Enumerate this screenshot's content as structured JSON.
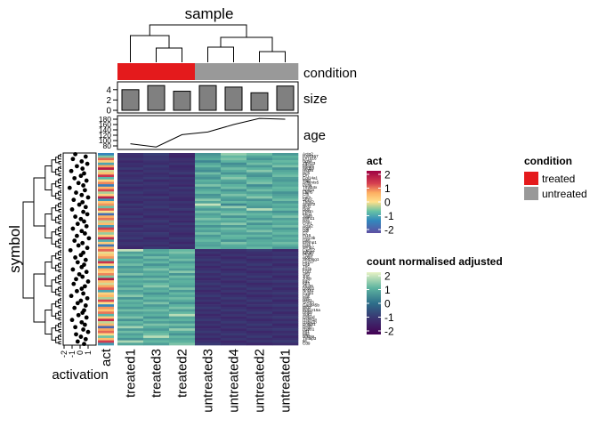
{
  "chart_data": {
    "type": "heatmap",
    "title": "sample",
    "row_axis_label": "symbol",
    "samples": [
      "treated1",
      "treated3",
      "treated2",
      "untreated3",
      "untreated4",
      "untreated2",
      "untreated1"
    ],
    "tracks": {
      "condition": {
        "label": "condition",
        "values": [
          "treated",
          "treated",
          "treated",
          "untreated",
          "untreated",
          "untreated",
          "untreated"
        ]
      },
      "size": {
        "label": "size",
        "type": "bar",
        "values": [
          4.0,
          4.8,
          3.7,
          4.8,
          4.5,
          3.4,
          4.7
        ],
        "ylim": [
          0,
          5
        ],
        "ticks": [
          "0",
          "2",
          "4"
        ]
      },
      "age": {
        "label": "age",
        "type": "line",
        "values": [
          88,
          76,
          122,
          132,
          160,
          183,
          180
        ],
        "ylim": [
          70,
          190
        ],
        "ticks": [
          "80",
          "100",
          "120",
          "140",
          "160",
          "180"
        ]
      }
    },
    "left_annotations": {
      "act_label": "act",
      "activation_label": "activation",
      "activation_ticks": [
        "-2",
        "-1",
        "0",
        "1"
      ]
    },
    "row_labels": [
      "Actg2",
      "Gm7467",
      "Fn1d16",
      "Rgs4",
      "Zfp423",
      "Mfap5",
      "Mrgp8",
      "Hlg36",
      "Dcn",
      "Eln",
      "Col14a1",
      "Mgp",
      "Adamts5",
      "Penk",
      "Tmsb4x",
      "Aebp1",
      "Fbln5",
      "Cfh",
      "Lum",
      "Sfrp2",
      "Thbs2",
      "Smoc2",
      "Nid2",
      "Bgn",
      "Postn",
      "Fbn1",
      "Tagln",
      "Myh11",
      "Des",
      "Cnn1",
      "Acta2",
      "Ogn",
      "Dpt",
      "C7",
      "Pi16",
      "Clec3b",
      "Gsn",
      "Efemp1",
      "Ctsk",
      "Mmp2",
      "Cxcl12",
      "Igfbp6",
      "Ptgds",
      "Apod",
      "Serping1",
      "Lrrc17",
      "Ckb",
      "Tnc",
      "Fosb",
      "Egr1",
      "Atf3",
      "Jun",
      "Junb",
      "Ier2",
      "Klf4",
      "Zfp36",
      "Dusp1",
      "Nr4a1",
      "Cyr61",
      "Ctgf",
      "Myc",
      "Hes1",
      "Socs3",
      "Gadd45b",
      "Btg2",
      "Ppp1r15a",
      "Rhob",
      "Sgk1",
      "Cebpd",
      "Hspa1a",
      "Hspa1b",
      "Dnajb1",
      "Bag3",
      "Hspb1",
      "Mt1",
      "Mt2",
      "Nfkbia",
      "Tnfaip3",
      "Il6",
      "Cd9"
    ],
    "cell_values": [
      [
        -1.2,
        -0.9,
        -1.4,
        0.6,
        1.6,
        1.3,
        0.7
      ],
      [
        -1.3,
        -1.1,
        -1.5,
        0.8,
        1.2,
        0.9,
        1.1
      ],
      [
        -1.1,
        -1.0,
        -1.2,
        1.0,
        1.4,
        0.6,
        0.9
      ],
      [
        -1.4,
        -1.2,
        -1.3,
        0.4,
        1.1,
        1.0,
        1.2
      ],
      [
        -1.2,
        -1.3,
        -1.1,
        0.9,
        0.5,
        1.3,
        1.0
      ],
      [
        -1.3,
        -1.0,
        -1.4,
        1.2,
        0.8,
        0.7,
        1.4
      ],
      [
        -1.0,
        -1.2,
        -1.3,
        0.7,
        1.3,
        1.1,
        0.6
      ],
      [
        -1.4,
        -1.1,
        -1.2,
        0.5,
        1.0,
        1.5,
        0.9
      ],
      [
        -1.1,
        -1.3,
        -1.0,
        1.3,
        0.6,
        0.8,
        1.1
      ],
      [
        -1.3,
        -1.2,
        -1.4,
        0.8,
        1.2,
        0.6,
        1.3
      ],
      [
        -1.2,
        -1.0,
        -1.1,
        0.6,
        1.5,
        1.0,
        0.8
      ],
      [
        -1.0,
        -1.4,
        -1.3,
        1.1,
        0.9,
        1.2,
        0.7
      ],
      [
        -1.3,
        -1.1,
        -1.2,
        0.9,
        0.7,
        1.4,
        1.0
      ],
      [
        -1.1,
        -1.2,
        -1.4,
        1.4,
        1.1,
        0.5,
        0.9
      ],
      [
        -1.4,
        -1.3,
        -1.0,
        0.7,
        1.3,
        0.9,
        1.2
      ],
      [
        -1.2,
        -1.1,
        -1.3,
        1.0,
        0.6,
        1.3,
        1.1
      ],
      [
        -1.0,
        -1.2,
        -1.1,
        1.2,
        1.0,
        0.8,
        0.6
      ],
      [
        -1.3,
        -1.4,
        -1.2,
        0.6,
        1.4,
        1.1,
        0.8
      ],
      [
        -1.1,
        -1.0,
        -1.3,
        0.8,
        0.9,
        1.5,
        1.0
      ],
      [
        -1.2,
        -1.3,
        -1.4,
        1.5,
        0.7,
        0.6,
        1.3
      ],
      [
        -1.4,
        -1.1,
        -1.1,
        0.9,
        1.2,
        1.0,
        0.7
      ],
      [
        -1.0,
        -1.2,
        -1.3,
        2.0,
        0.4,
        0.9,
        1.1
      ],
      [
        -1.3,
        -1.0,
        -1.2,
        1.1,
        1.6,
        0.7,
        0.9
      ],
      [
        -1.1,
        -1.3,
        -1.0,
        0.7,
        0.8,
        1.9,
        1.2
      ],
      [
        -1.2,
        -1.2,
        -1.4,
        1.3,
        1.1,
        0.8,
        0.6
      ],
      [
        -1.4,
        -1.1,
        -1.1,
        0.8,
        1.4,
        1.2,
        1.0
      ],
      [
        -1.0,
        -1.4,
        -1.3,
        1.0,
        0.6,
        1.0,
        1.4
      ],
      [
        -1.3,
        -1.2,
        -1.2,
        1.4,
        1.2,
        0.7,
        0.8
      ],
      [
        -1.1,
        -1.0,
        -1.4,
        0.9,
        0.9,
        1.3,
        1.1
      ],
      [
        -1.2,
        -1.3,
        -1.0,
        1.2,
        1.5,
        0.6,
        0.9
      ],
      [
        -1.4,
        -1.1,
        -1.3,
        0.6,
        0.7,
        1.1,
        1.3
      ],
      [
        -1.0,
        -1.2,
        -1.1,
        1.1,
        1.3,
        0.9,
        0.7
      ],
      [
        -1.3,
        -1.3,
        -1.2,
        0.8,
        1.0,
        1.4,
        1.0
      ],
      [
        -1.1,
        -1.0,
        -1.4,
        1.3,
        0.8,
        0.8,
        1.2
      ],
      [
        -1.2,
        -1.1,
        -1.3,
        0.7,
        1.2,
        1.2,
        0.8
      ],
      [
        -1.0,
        -1.4,
        -1.0,
        1.0,
        1.1,
        0.7,
        1.1
      ],
      [
        -1.3,
        -1.2,
        -1.2,
        1.2,
        0.6,
        1.0,
        0.9
      ],
      [
        -1.1,
        -1.1,
        -1.4,
        0.9,
        1.4,
        1.1,
        1.3
      ],
      [
        -1.2,
        -1.3,
        -1.1,
        0.8,
        1.0,
        0.9,
        1.0
      ],
      [
        -1.4,
        -1.0,
        -1.3,
        1.1,
        0.9,
        1.2,
        0.7
      ],
      [
        2.0,
        0.9,
        1.2,
        -1.3,
        -1.2,
        -1.0,
        -1.4
      ],
      [
        0.8,
        1.1,
        1.4,
        -1.1,
        -1.3,
        -1.2,
        -1.1
      ],
      [
        1.2,
        0.7,
        1.0,
        -1.4,
        -1.1,
        -1.3,
        -1.2
      ],
      [
        0.6,
        1.3,
        0.9,
        -1.2,
        -1.4,
        -1.1,
        -1.0
      ],
      [
        1.1,
        0.8,
        1.3,
        -1.0,
        -1.2,
        -1.4,
        -1.3
      ],
      [
        0.9,
        1.2,
        0.7,
        -1.3,
        -1.0,
        -1.2,
        -1.1
      ],
      [
        1.3,
        0.6,
        1.1,
        -1.1,
        -1.3,
        -1.0,
        -1.4
      ],
      [
        0.7,
        1.0,
        1.2,
        -1.4,
        -1.1,
        -1.3,
        -1.2
      ],
      [
        1.0,
        1.4,
        0.8,
        -1.2,
        -1.4,
        -1.1,
        -1.0
      ],
      [
        0.8,
        0.9,
        1.5,
        -1.0,
        -1.2,
        -1.4,
        -1.3
      ],
      [
        1.4,
        1.1,
        0.6,
        -1.3,
        -1.0,
        -1.2,
        -1.1
      ],
      [
        0.6,
        0.7,
        1.3,
        -1.1,
        -1.3,
        -1.0,
        -1.4
      ],
      [
        1.2,
        1.3,
        0.9,
        -1.4,
        -1.1,
        -1.3,
        -1.2
      ],
      [
        0.9,
        0.8,
        1.1,
        -1.2,
        -1.4,
        -1.1,
        -1.0
      ],
      [
        1.1,
        1.2,
        1.0,
        -1.0,
        -1.2,
        -1.4,
        -1.3
      ],
      [
        0.7,
        1.5,
        0.8,
        -1.3,
        -1.0,
        -1.2,
        -1.1
      ],
      [
        1.3,
        0.9,
        1.4,
        -1.1,
        -1.3,
        -1.0,
        -1.4
      ],
      [
        0.8,
        1.1,
        0.7,
        -1.4,
        -1.1,
        -1.3,
        -1.2
      ],
      [
        1.0,
        0.6,
        1.2,
        -1.2,
        -1.4,
        -1.1,
        -1.0
      ],
      [
        1.5,
        1.0,
        0.9,
        -1.0,
        -1.2,
        -1.4,
        -1.3
      ],
      [
        0.6,
        1.2,
        1.3,
        -1.3,
        -1.0,
        -1.2,
        -1.1
      ],
      [
        1.2,
        0.8,
        1.0,
        -1.1,
        -1.3,
        -1.0,
        -1.4
      ],
      [
        0.9,
        1.4,
        0.6,
        -1.4,
        -1.1,
        -1.3,
        -1.2
      ],
      [
        1.1,
        0.7,
        1.1,
        -1.2,
        -1.4,
        -1.1,
        -1.0
      ],
      [
        0.7,
        1.0,
        1.4,
        -1.0,
        -1.2,
        -1.4,
        -1.3
      ],
      [
        1.3,
        1.3,
        0.8,
        -1.3,
        -1.0,
        -1.2,
        -1.1
      ],
      [
        0.8,
        0.9,
        1.2,
        -1.1,
        -1.3,
        -1.0,
        -1.4
      ],
      [
        1.0,
        1.1,
        1.9,
        -1.4,
        -1.1,
        -1.3,
        -1.2
      ],
      [
        1.4,
        0.6,
        0.9,
        -1.2,
        -1.4,
        -1.1,
        -1.0
      ],
      [
        0.6,
        1.2,
        1.1,
        -1.0,
        -1.2,
        -1.4,
        -1.3
      ],
      [
        1.2,
        0.8,
        0.7,
        -1.3,
        -1.0,
        -1.2,
        -1.1
      ],
      [
        0.9,
        1.4,
        1.3,
        -1.1,
        -1.3,
        -1.0,
        -1.4
      ],
      [
        1.7,
        1.0,
        0.8,
        -1.4,
        -1.1,
        -1.3,
        -1.2
      ],
      [
        0.7,
        0.7,
        1.6,
        -1.2,
        -1.4,
        -1.1,
        -1.0
      ],
      [
        1.3,
        1.1,
        1.0,
        -1.0,
        -1.2,
        -1.4,
        -1.3
      ],
      [
        0.8,
        1.3,
        0.6,
        -1.3,
        -1.0,
        -1.2,
        -1.1
      ],
      [
        1.1,
        1.9,
        1.2,
        -1.1,
        -1.3,
        -1.0,
        -1.4
      ],
      [
        0.6,
        0.9,
        0.9,
        -1.4,
        -1.1,
        -1.3,
        -1.2
      ],
      [
        1.8,
        1.2,
        1.1,
        -1.2,
        -1.4,
        -1.1,
        -1.0
      ],
      [
        0.9,
        0.8,
        1.4,
        -1.0,
        -1.2,
        -1.4,
        -1.3
      ]
    ],
    "act_values": [
      -1.5,
      -0.6,
      1.2,
      0.3,
      -1.1,
      0.8,
      1.9,
      -0.2,
      0.5,
      1.6,
      -0.9,
      0.1,
      1.0,
      -1.6,
      0.6,
      1.4,
      -0.4,
      0.2,
      1.8,
      -1.3,
      0.4,
      0.9,
      -0.7,
      1.3,
      0.0,
      -1.8,
      0.7,
      1.1,
      -0.3,
      0.5,
      -1.2,
      1.5,
      0.8,
      -0.5,
      0.2,
      1.7,
      -1.0,
      0.3,
      -1.7,
      0.6,
      1.2,
      -0.1,
      0.4,
      0.9,
      -0.8,
      1.6,
      0.1,
      -1.4,
      0.7,
      0.3,
      1.0,
      -0.6,
      1.9,
      0.5,
      -0.2,
      0.8,
      1.3,
      -1.1,
      0.2,
      0.6,
      -0.4,
      1.4,
      0.0,
      -1.5,
      0.9,
      0.4,
      1.1,
      -0.9,
      0.3,
      1.7,
      -0.3,
      0.6,
      -1.9,
      0.8,
      1.2,
      0.1,
      -0.7,
      0.5,
      1.5,
      -1.2
    ],
    "activation_values": [
      -0.6,
      0.7,
      -0.9,
      0.2,
      0.9,
      -0.4,
      0.3,
      -1.1,
      0.5,
      0.1,
      -0.7,
      0.8,
      -0.2,
      0.4,
      -1.3,
      0.6,
      -0.5,
      0.2,
      1.0,
      -0.8,
      0.3,
      -0.1,
      0.7,
      -1.0,
      0.4,
      0.9,
      -0.6,
      0.1,
      0.5,
      -0.3,
      0.8,
      -0.9,
      0.2,
      0.6,
      -0.4,
      1.1,
      -0.7,
      0.3,
      -0.2,
      0.9,
      -1.2,
      0.4,
      0.1,
      -0.6,
      0.7,
      -0.3,
      0.5,
      0.2,
      -0.9,
      0.8,
      -0.1,
      0.3,
      -0.5,
      1.0,
      -0.8,
      0.6,
      0.2,
      -0.4,
      0.4,
      -1.1,
      0.9,
      0.1,
      -0.3,
      0.7,
      -0.7,
      0.5,
      0.3,
      -0.2,
      0.8,
      -1.0,
      0.2,
      0.6,
      -0.6,
      0.4,
      1.0,
      -0.5,
      0.1,
      0.7,
      -0.3,
      0.5
    ],
    "legends": {
      "act": {
        "title": "act",
        "ticks": [
          "2",
          "1",
          "0",
          "-1",
          "-2"
        ]
      },
      "count": {
        "title": "count normalised adjusted",
        "ticks": [
          "2",
          "1",
          "0",
          "-1",
          "-2"
        ]
      },
      "condition": {
        "title": "condition",
        "items": [
          {
            "label": "treated",
            "color": "#e41a1c"
          },
          {
            "label": "untreated",
            "color": "#999999"
          }
        ]
      }
    }
  }
}
